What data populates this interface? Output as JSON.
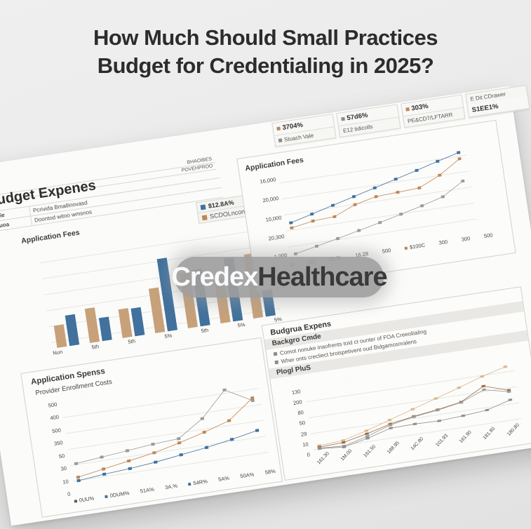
{
  "header": {
    "title_line1": "How Much Should Small Practices",
    "title_line2": "Budget for Credentialing in 2025?"
  },
  "watermark": {
    "light": "Credex",
    "dark": "Healthcare"
  },
  "stat_boxes": [
    {
      "row1": "3704%",
      "row1_dot": "#bf8756",
      "row2": "Stuach Vale",
      "row2_dot": "#8a8a8a"
    },
    {
      "row1": "57d6%",
      "row1_dot": "#8a8a8a",
      "row2": "E12 tidicolls"
    },
    {
      "row1": "303%",
      "row1_dot": "#bf8756",
      "row2": "PE&CD7/LFTARR"
    },
    {
      "row1": "E Dit CDrawer",
      "row2": "S1EE1%"
    }
  ],
  "top_left": {
    "note_line1": "BHAOIBES",
    "note_line2": "POVEHPROO",
    "header": "Budget Expenes",
    "rows": [
      {
        "c1": "Aoalie",
        "c2": "Pcrivida Bmallinovasd"
      },
      {
        "c1": "Pasuoa",
        "c2": "Doontod witoo wmsnos"
      }
    ],
    "legend_blue": "$12.8A%",
    "legend_orange": "SCDOLncong",
    "chart_label": "Application Fees"
  },
  "top_right": {
    "chart_label": "Application Fees"
  },
  "bottom_left": {
    "header": "Application Spenss",
    "subheader": "Provider Enrollment Costs"
  },
  "bottom_right": {
    "header": "Budgrua Expens",
    "subheader": "Backgro Cmde",
    "bullets": [
      "Comot nonuke inaofrents toid ct ounter of FOA Creeoliialing",
      "Wher onts crecliect broispetivent oud Bidgamosnralens"
    ],
    "band_label": "Plogl PluS"
  },
  "colors": {
    "blue": "#41719c",
    "tan": "#c7a17a",
    "orange": "#bf8756",
    "gray": "#9a9a9a"
  },
  "chart_data": [
    {
      "type": "bar",
      "title": "Application Fees",
      "categories": [
        "Nun",
        "5th",
        "5th",
        "5%",
        "5th",
        "5%",
        "5%"
      ],
      "series": [
        {
          "name": "SCDOLncong",
          "color": "#c7a17a",
          "values": [
            2.2,
            3.5,
            2.9,
            4.6,
            5.6,
            4.5,
            6.7
          ]
        },
        {
          "name": "$12.8A%",
          "color": "#41719c",
          "values": [
            3.1,
            2.3,
            2.8,
            7.6,
            5.9,
            6.6,
            9.5
          ]
        }
      ],
      "ylim": [
        0,
        10
      ],
      "legend_position": "top-right",
      "grid": true
    },
    {
      "type": "line",
      "title": "Application Fees",
      "y_ticks": [
        {
          "t": "16,000"
        },
        {
          "t": "20,000"
        },
        {
          "t": "10,000"
        },
        {
          "t": "20,300"
        },
        {
          "t": "1,000"
        }
      ],
      "x_ticks": [
        {
          "t": "0"
        },
        {
          "t": "150"
        },
        {
          "t": "31.%"
        },
        {
          "t": "16.28"
        },
        {
          "t": "500"
        },
        {
          "t": "$100C",
          "dot": "#bf8756"
        },
        {
          "t": "300"
        },
        {
          "t": "300"
        },
        {
          "t": "500"
        }
      ],
      "series": [
        {
          "name": "blue",
          "color": "#41719c",
          "values": [
            9.3,
            10.8,
            12.3,
            13.8,
            15.3,
            16.8,
            18.3,
            19.9,
            21.4
          ]
        },
        {
          "name": "orange",
          "color": "#bf8756",
          "values": [
            7.9,
            8.9,
            9.2,
            11.6,
            12.9,
            13.2,
            13.5,
            16.1,
            19.7
          ]
        },
        {
          "name": "gray",
          "color": "#9a9a9a",
          "values": [
            0.8,
            2.0,
            3.2,
            4.5,
            5.8,
            7.2,
            8.6,
            10.2,
            13.6
          ]
        }
      ],
      "ylim": [
        0,
        23
      ],
      "grid": true
    },
    {
      "type": "line",
      "title": "Application Spenss / Provider Enrollment Costs",
      "y_ticks": [
        {
          "t": "500"
        },
        {
          "t": "400"
        },
        {
          "t": "500"
        },
        {
          "t": "350"
        },
        {
          "t": "50"
        },
        {
          "t": "30"
        },
        {
          "t": "10"
        },
        {
          "t": "0"
        }
      ],
      "x_ticks": [
        {
          "t": "0UU%",
          "dot": "#555a66"
        },
        {
          "t": "0DUM%",
          "dot": "#41719c"
        },
        {
          "t": "51A%"
        },
        {
          "t": "3A.%"
        },
        {
          "t": "54R%",
          "dot": "#41719c"
        },
        {
          "t": "5A%"
        },
        {
          "t": "50A%"
        },
        {
          "t": "58%"
        }
      ],
      "series": [
        {
          "name": "gray",
          "color": "#9a9a9a",
          "values": [
            3.4,
            3.7,
            4.0,
            4.3,
            4.5,
            6.4,
            9.3,
            7.6
          ]
        },
        {
          "name": "orange",
          "color": "#bf8756",
          "values": [
            1.8,
            2.3,
            2.8,
            3.3,
            4.0,
            4.8,
            5.7,
            7.9
          ]
        },
        {
          "name": "blue",
          "color": "#41719c",
          "values": [
            1.4,
            1.7,
            1.9,
            2.2,
            2.6,
            3.0,
            3.5,
            4.1
          ]
        }
      ],
      "ylim": [
        0,
        10
      ],
      "grid": true
    },
    {
      "type": "line",
      "title": "Plogl PluS",
      "y_ticks": [
        {
          "t": "130"
        },
        {
          "t": "200"
        },
        {
          "t": "80"
        },
        {
          "t": "50"
        },
        {
          "t": "29"
        },
        {
          "t": "10"
        },
        {
          "t": "0"
        }
      ],
      "x_ticks": [
        {
          "t": "161.30"
        },
        {
          "t": "1M.00"
        },
        {
          "t": "161.50"
        },
        {
          "t": "188.95"
        },
        {
          "t": "14C.80"
        },
        {
          "t": "101.93"
        },
        {
          "t": "161.90"
        },
        {
          "t": "181.80"
        },
        {
          "t": "180.80"
        }
      ],
      "series": [
        {
          "name": "tan-light",
          "color": "#d8b78e",
          "values": [
            2.1,
            2.4,
            3.6,
            5.0,
            6.4,
            7.8,
            9.2,
            10.7,
            11.9
          ]
        },
        {
          "name": "brown",
          "color": "#9c6b45",
          "values": [
            1.8,
            2.0,
            3.0,
            4.2,
            5.0,
            5.6,
            6.4,
            8.8,
            7.3
          ]
        },
        {
          "name": "gray-a",
          "color": "#9a9a9a",
          "values": [
            1.6,
            1.3,
            2.5,
            4.0,
            4.9,
            5.5,
            6.3,
            8.1,
            7.0
          ]
        },
        {
          "name": "gray-b",
          "color": "#8f8f8f",
          "values": [
            1.5,
            1.1,
            2.1,
            3.4,
            3.5,
            3.4,
            3.7,
            4.1,
            5.4
          ]
        }
      ],
      "ylim": [
        0,
        13
      ],
      "grid": true
    }
  ]
}
